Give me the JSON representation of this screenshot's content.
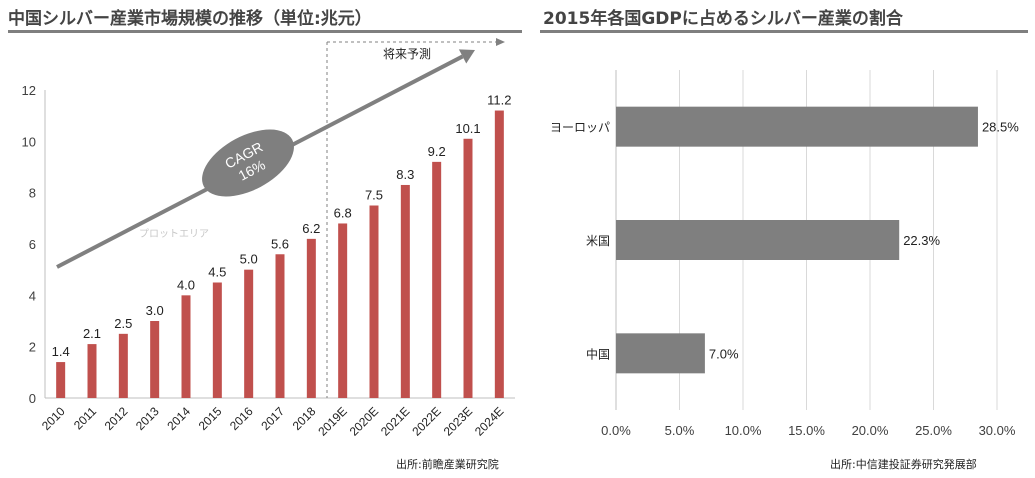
{
  "chart_data": [
    {
      "type": "bar",
      "title": "中国シルバー産業市場規模の推移（単位:兆元）",
      "categories": [
        "2010",
        "2011",
        "2012",
        "2013",
        "2014",
        "2015",
        "2016",
        "2017",
        "2018",
        "2019E",
        "2020E",
        "2021E",
        "2022E",
        "2023E",
        "2024E"
      ],
      "values": [
        1.4,
        2.1,
        2.5,
        3.0,
        4.0,
        4.5,
        5.0,
        5.6,
        6.2,
        6.8,
        7.5,
        8.3,
        9.2,
        10.1,
        11.2
      ],
      "value_labels": [
        "1.4",
        "2.1",
        "2.5",
        "3.0",
        "4.0",
        "4.5",
        "5.0",
        "5.6",
        "6.2",
        "6.8",
        "7.5",
        "8.3",
        "9.2",
        "10.1",
        "11.2"
      ],
      "ylim": [
        0,
        12
      ],
      "yticks": [
        0,
        2,
        4,
        6,
        8,
        10,
        12
      ],
      "gridlines": false,
      "bar_color": "#c0504d",
      "forecast_label": "将来予測",
      "forecast_start_category": "2019E",
      "cagr_label": "CAGR\n16%",
      "plot_area_label": "プロットエリア",
      "source": "出所:前瞻産業研究院"
    },
    {
      "type": "bar",
      "orientation": "horizontal",
      "title": "2015年各国GDPに占めるシルバー産業の割合",
      "categories": [
        "ヨーロッパ",
        "米国",
        "中国"
      ],
      "values": [
        28.5,
        22.3,
        7.0
      ],
      "value_labels": [
        "28.5%",
        "22.3%",
        "7.0%"
      ],
      "xlim": [
        0,
        30
      ],
      "xticks": [
        0,
        5,
        10,
        15,
        20,
        25,
        30
      ],
      "xtick_labels": [
        "0.0%",
        "5.0%",
        "10.0%",
        "15.0%",
        "20.0%",
        "25.0%",
        "30.0%"
      ],
      "gridlines": true,
      "bar_color": "#7f7f7f",
      "source": "出所:中信建投証券研究発展部"
    }
  ]
}
